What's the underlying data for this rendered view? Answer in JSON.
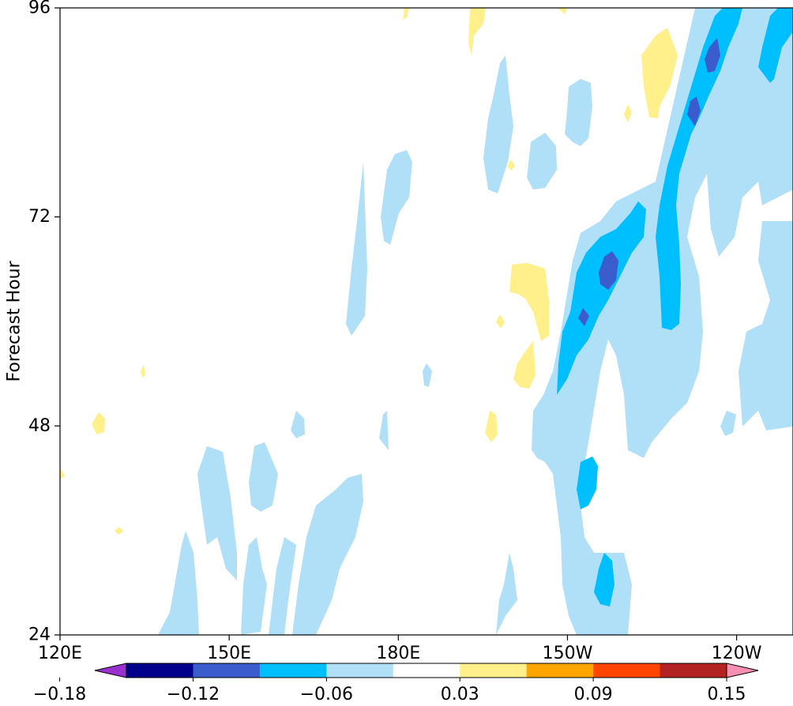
{
  "chart_data": {
    "type": "heatmap",
    "subtype": "filled-contour (Hovmoller diagram)",
    "title": "",
    "xlabel": "",
    "ylabel": "Forecast Hour",
    "x_ticks": [
      "120E",
      "150E",
      "180E",
      "150W",
      "120W"
    ],
    "y_ticks": [
      "24",
      "48",
      "72",
      "96"
    ],
    "xlim_deg_east": [
      120,
      250
    ],
    "x_tick_values_deg_east": [
      120,
      150,
      180,
      210,
      240
    ],
    "ylim": [
      24,
      96
    ],
    "y_tick_values": [
      24,
      48,
      72,
      96
    ],
    "grid": false,
    "colorbar": {
      "orientation": "horizontal",
      "location": "bottom",
      "extend": "both",
      "tick_labels": [
        "−0.18",
        "−0.12",
        "−0.06",
        "0.03",
        "0.09",
        "0.15"
      ],
      "levels": [
        -0.18,
        -0.15,
        -0.12,
        -0.09,
        -0.06,
        -0.03,
        0.03,
        0.06,
        0.09,
        0.12,
        0.15
      ],
      "colors": [
        "#9b30d0",
        "#00008b",
        "#3a5ccc",
        "#00bfff",
        "#b0e0f8",
        "#ffffff",
        "#fff08c",
        "#ffa500",
        "#ff4500",
        "#b22222",
        "#f88fb3"
      ],
      "under_color": "#9b30d0",
      "over_color": "#f88fb3"
    },
    "regions": [
      {
        "level_range": [
          -0.06,
          -0.03
        ],
        "color": "#b0e0f8",
        "lon": 140,
        "hour_range": [
          24,
          45
        ],
        "note": "light blue streaks 140E-180E, hours 24-45"
      },
      {
        "level_range": [
          -0.06,
          -0.03
        ],
        "color": "#b0e0f8",
        "lon": 210,
        "hour_range": [
          24,
          96
        ],
        "note": "broad light blue band 145W-115W"
      },
      {
        "level_range": [
          -0.09,
          -0.06
        ],
        "color": "#00bfff",
        "lon": 212,
        "hour_range": [
          52,
          70
        ],
        "note": "sky blue diagonal band"
      },
      {
        "level_range": [
          -0.09,
          -0.06
        ],
        "color": "#00bfff",
        "lon": 226,
        "hour_range": [
          60,
          96
        ],
        "note": "sky blue diagonal band"
      },
      {
        "level_range": [
          -0.12,
          -0.09
        ],
        "color": "#3a5ccc",
        "lon": 227,
        "hour_range": [
          83,
          95
        ],
        "note": "medium blue cores"
      },
      {
        "level_range": [
          0.03,
          0.06
        ],
        "color": "#fff08c",
        "lon": 198,
        "hour_range": [
          55,
          67
        ],
        "note": "small pale yellow patches"
      },
      {
        "level_range": [
          0.03,
          0.06
        ],
        "color": "#fff08c",
        "lon": 222,
        "hour_range": [
          86,
          94
        ],
        "note": "pale yellow patch"
      }
    ]
  }
}
